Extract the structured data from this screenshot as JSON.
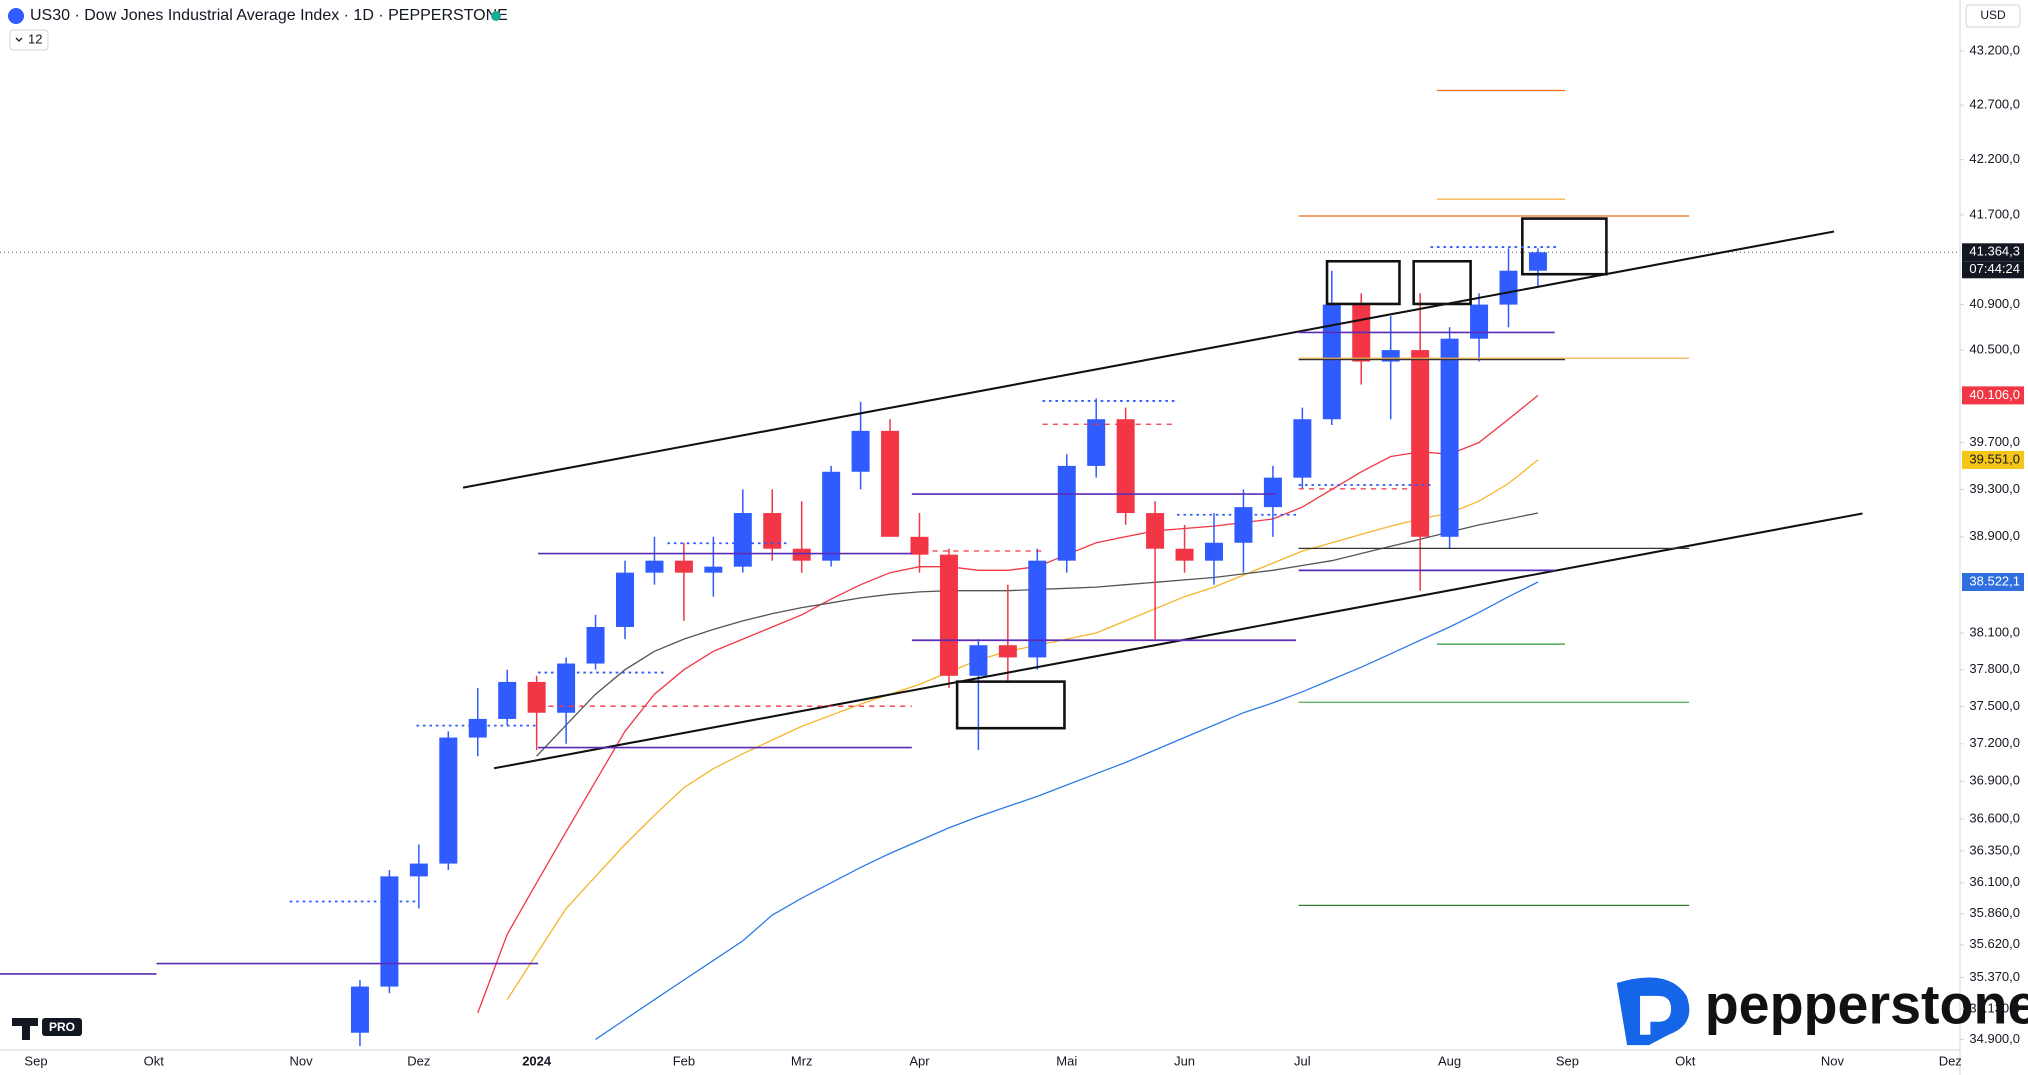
{
  "chart_data": {
    "type": "candlestick",
    "title": "US30 · Dow Jones Industrial Average Index · 1D · PEPPERSTONE",
    "indicator_count": "12",
    "currency": "USD",
    "badge": "PRO",
    "brand": "pepperstone",
    "log_scale": true,
    "grid": false,
    "up_color": "#2f5bff",
    "down_color": "#f23645",
    "categories": [
      "Sep",
      null,
      null,
      null,
      "Okt",
      null,
      null,
      null,
      null,
      "Nov",
      null,
      null,
      null,
      "Dez",
      null,
      null,
      null,
      "2024",
      null,
      null,
      null,
      null,
      "Feb",
      null,
      null,
      null,
      "Mrz",
      null,
      null,
      null,
      "Apr",
      null,
      null,
      null,
      null,
      "Mai",
      null,
      null,
      null,
      "Jun",
      null,
      null,
      null,
      "Jul",
      null,
      null,
      null,
      null,
      "Aug",
      null,
      null,
      null,
      "Sep",
      null,
      null,
      null,
      "Okt",
      null,
      null,
      null,
      null,
      "Nov",
      null,
      null,
      null,
      "Dez",
      null,
      null,
      null
    ],
    "open": [
      null,
      null,
      null,
      null,
      null,
      null,
      null,
      null,
      null,
      null,
      null,
      34950,
      35300,
      36150,
      36250,
      37250,
      37400,
      37700,
      37450,
      37850,
      38150,
      38600,
      38700,
      38600,
      38650,
      39100,
      38800,
      38700,
      39450,
      39800,
      38900,
      38750,
      37750,
      38000,
      37900,
      38700,
      39500,
      39900,
      39100,
      38800,
      38700,
      38850,
      39150,
      39400,
      39900,
      40900,
      40400,
      40500,
      38900,
      40600,
      40900,
      41200,
      null,
      null,
      null,
      null,
      null,
      null,
      null,
      null,
      null,
      null,
      null,
      null,
      null,
      null,
      null,
      null,
      null
    ],
    "high": [
      null,
      null,
      null,
      null,
      null,
      null,
      null,
      null,
      null,
      null,
      null,
      35350,
      36200,
      36400,
      37300,
      37650,
      37800,
      37750,
      37900,
      38250,
      38700,
      38900,
      38850,
      38900,
      39300,
      39300,
      39200,
      39500,
      40050,
      39900,
      39100,
      38800,
      38050,
      38500,
      38800,
      39600,
      40080,
      40000,
      39200,
      39000,
      39100,
      39300,
      39500,
      40000,
      41200,
      41000,
      40800,
      41000,
      40700,
      41000,
      41400,
      41400,
      null,
      null,
      null,
      null,
      null,
      null,
      null,
      null,
      null,
      null,
      null,
      null,
      null,
      null,
      null,
      null,
      null
    ],
    "low": [
      null,
      null,
      null,
      null,
      null,
      null,
      null,
      null,
      null,
      null,
      null,
      34850,
      35250,
      35900,
      36200,
      37100,
      37350,
      37150,
      37200,
      37800,
      38050,
      38500,
      38200,
      38400,
      38600,
      38700,
      38600,
      38650,
      39300,
      38900,
      38600,
      37650,
      37150,
      37700,
      37800,
      38600,
      39400,
      39000,
      38050,
      38600,
      38500,
      38600,
      38900,
      39300,
      39850,
      40200,
      39900,
      38450,
      38800,
      40400,
      40700,
      41050,
      null,
      null,
      null,
      null,
      null,
      null,
      null,
      null,
      null,
      null,
      null,
      null,
      null,
      null,
      null,
      null,
      null
    ],
    "close": [
      null,
      null,
      null,
      null,
      null,
      null,
      null,
      null,
      null,
      null,
      null,
      35300,
      36150,
      36250,
      37250,
      37400,
      37700,
      37450,
      37850,
      38150,
      38600,
      38700,
      38600,
      38650,
      39100,
      38800,
      38700,
      39450,
      39800,
      38900,
      38750,
      37750,
      38000,
      37900,
      38700,
      39500,
      39900,
      39100,
      38800,
      38700,
      38850,
      39150,
      39400,
      39900,
      40900,
      40400,
      40500,
      38900,
      40600,
      40900,
      41200,
      41364.3,
      null,
      null,
      null,
      null,
      null,
      null,
      null,
      null,
      null,
      null,
      null,
      null,
      null,
      null,
      null,
      null,
      null
    ],
    "lines": [
      {
        "color": "#2f7be8",
        "values": [
          null,
          null,
          null,
          null,
          null,
          null,
          null,
          null,
          null,
          null,
          null,
          null,
          null,
          null,
          null,
          null,
          null,
          null,
          null,
          34900,
          35050,
          35200,
          35350,
          35500,
          35650,
          35850,
          35980,
          36100,
          36220,
          36330,
          36430,
          36530,
          36620,
          36700,
          36780,
          36870,
          36960,
          37050,
          37150,
          37250,
          37350,
          37450,
          37530,
          37620,
          37720,
          37820,
          37930,
          38040,
          38150,
          38270,
          38400,
          38522.1,
          null,
          null,
          null,
          null,
          null,
          null,
          null,
          null,
          null,
          null,
          null,
          null,
          null,
          null,
          null,
          null,
          null
        ]
      },
      {
        "color": "#f23645",
        "values": [
          null,
          null,
          null,
          null,
          null,
          null,
          null,
          null,
          null,
          null,
          null,
          null,
          null,
          null,
          null,
          35100,
          35700,
          36100,
          36500,
          36900,
          37300,
          37600,
          37800,
          37950,
          38050,
          38150,
          38250,
          38380,
          38500,
          38600,
          38650,
          38650,
          38620,
          38620,
          38650,
          38750,
          38850,
          38900,
          38950,
          38970,
          38990,
          39020,
          39050,
          39150,
          39300,
          39450,
          39580,
          39620,
          39600,
          39700,
          39900,
          40106,
          null,
          null,
          null,
          null,
          null,
          null,
          null,
          null,
          null,
          null,
          null,
          null,
          null,
          null,
          null,
          null,
          null
        ]
      },
      {
        "color": "#f5b52a",
        "values": [
          null,
          null,
          null,
          null,
          null,
          null,
          null,
          null,
          null,
          null,
          null,
          null,
          null,
          null,
          null,
          null,
          35200,
          35550,
          35900,
          36150,
          36400,
          36630,
          36850,
          37000,
          37120,
          37230,
          37340,
          37430,
          37520,
          37600,
          37680,
          37780,
          37880,
          37950,
          38000,
          38050,
          38100,
          38200,
          38300,
          38400,
          38480,
          38580,
          38680,
          38780,
          38850,
          38920,
          38990,
          39050,
          39100,
          39200,
          39350,
          39551,
          null,
          null,
          null,
          null,
          null,
          null,
          null,
          null,
          null,
          null,
          null,
          null,
          null,
          null,
          null,
          null,
          null
        ]
      },
      {
        "color": "#555555",
        "values": [
          null,
          null,
          null,
          null,
          null,
          null,
          null,
          null,
          null,
          null,
          null,
          null,
          null,
          null,
          null,
          null,
          null,
          37100,
          37350,
          37600,
          37800,
          37950,
          38050,
          38130,
          38200,
          38260,
          38310,
          38350,
          38390,
          38420,
          38440,
          38450,
          38450,
          38450,
          38460,
          38470,
          38480,
          38500,
          38520,
          38540,
          38560,
          38590,
          38620,
          38660,
          38700,
          38760,
          38820,
          38880,
          38940,
          39000,
          39050,
          39100,
          null,
          null,
          null,
          null,
          null,
          null,
          null,
          null,
          null,
          null,
          null,
          null,
          null,
          null,
          null,
          null,
          null
        ]
      }
    ],
    "ylim": [
      34820,
      43680
    ],
    "yticks": [
      {
        "value": 43200,
        "label": "43.200,0"
      },
      {
        "value": 42700,
        "label": "42.700,0"
      },
      {
        "value": 42200,
        "label": "42.200,0"
      },
      {
        "value": 41700,
        "label": "41.700,0"
      },
      {
        "value": 40900,
        "label": "40.900,0"
      },
      {
        "value": 40500,
        "label": "40.500,0"
      },
      {
        "value": 39700,
        "label": "39.700,0"
      },
      {
        "value": 39300,
        "label": "39.300,0"
      },
      {
        "value": 38900,
        "label": "38.900,0"
      },
      {
        "value": 38100,
        "label": "38.100,0"
      },
      {
        "value": 37800,
        "label": "37.800,0"
      },
      {
        "value": 37500,
        "label": "37.500,0"
      },
      {
        "value": 37200,
        "label": "37.200,0"
      },
      {
        "value": 36900,
        "label": "36.900,0"
      },
      {
        "value": 36600,
        "label": "36.600,0"
      },
      {
        "value": 36350,
        "label": "36.350,0"
      },
      {
        "value": 36100,
        "label": "36.100,0"
      },
      {
        "value": 35860,
        "label": "35.860,0"
      },
      {
        "value": 35620,
        "label": "35.620,0"
      },
      {
        "value": 35370,
        "label": "35.370,0"
      },
      {
        "value": 35130,
        "label": "35.130,0"
      },
      {
        "value": 34900,
        "label": "34.900,0"
      }
    ],
    "price_labels": [
      {
        "value": 41364.3,
        "label": "41.364,3",
        "color": "#131722"
      },
      {
        "value": 40106,
        "label": "40.106,0",
        "color": "#f23645"
      },
      {
        "value": 39551,
        "label": "39.551,0",
        "color": "#f5c518"
      },
      {
        "value": 38522.1,
        "label": "38.522,1",
        "color": "#2f6fe0"
      }
    ],
    "countdown": "07:44:24"
  }
}
